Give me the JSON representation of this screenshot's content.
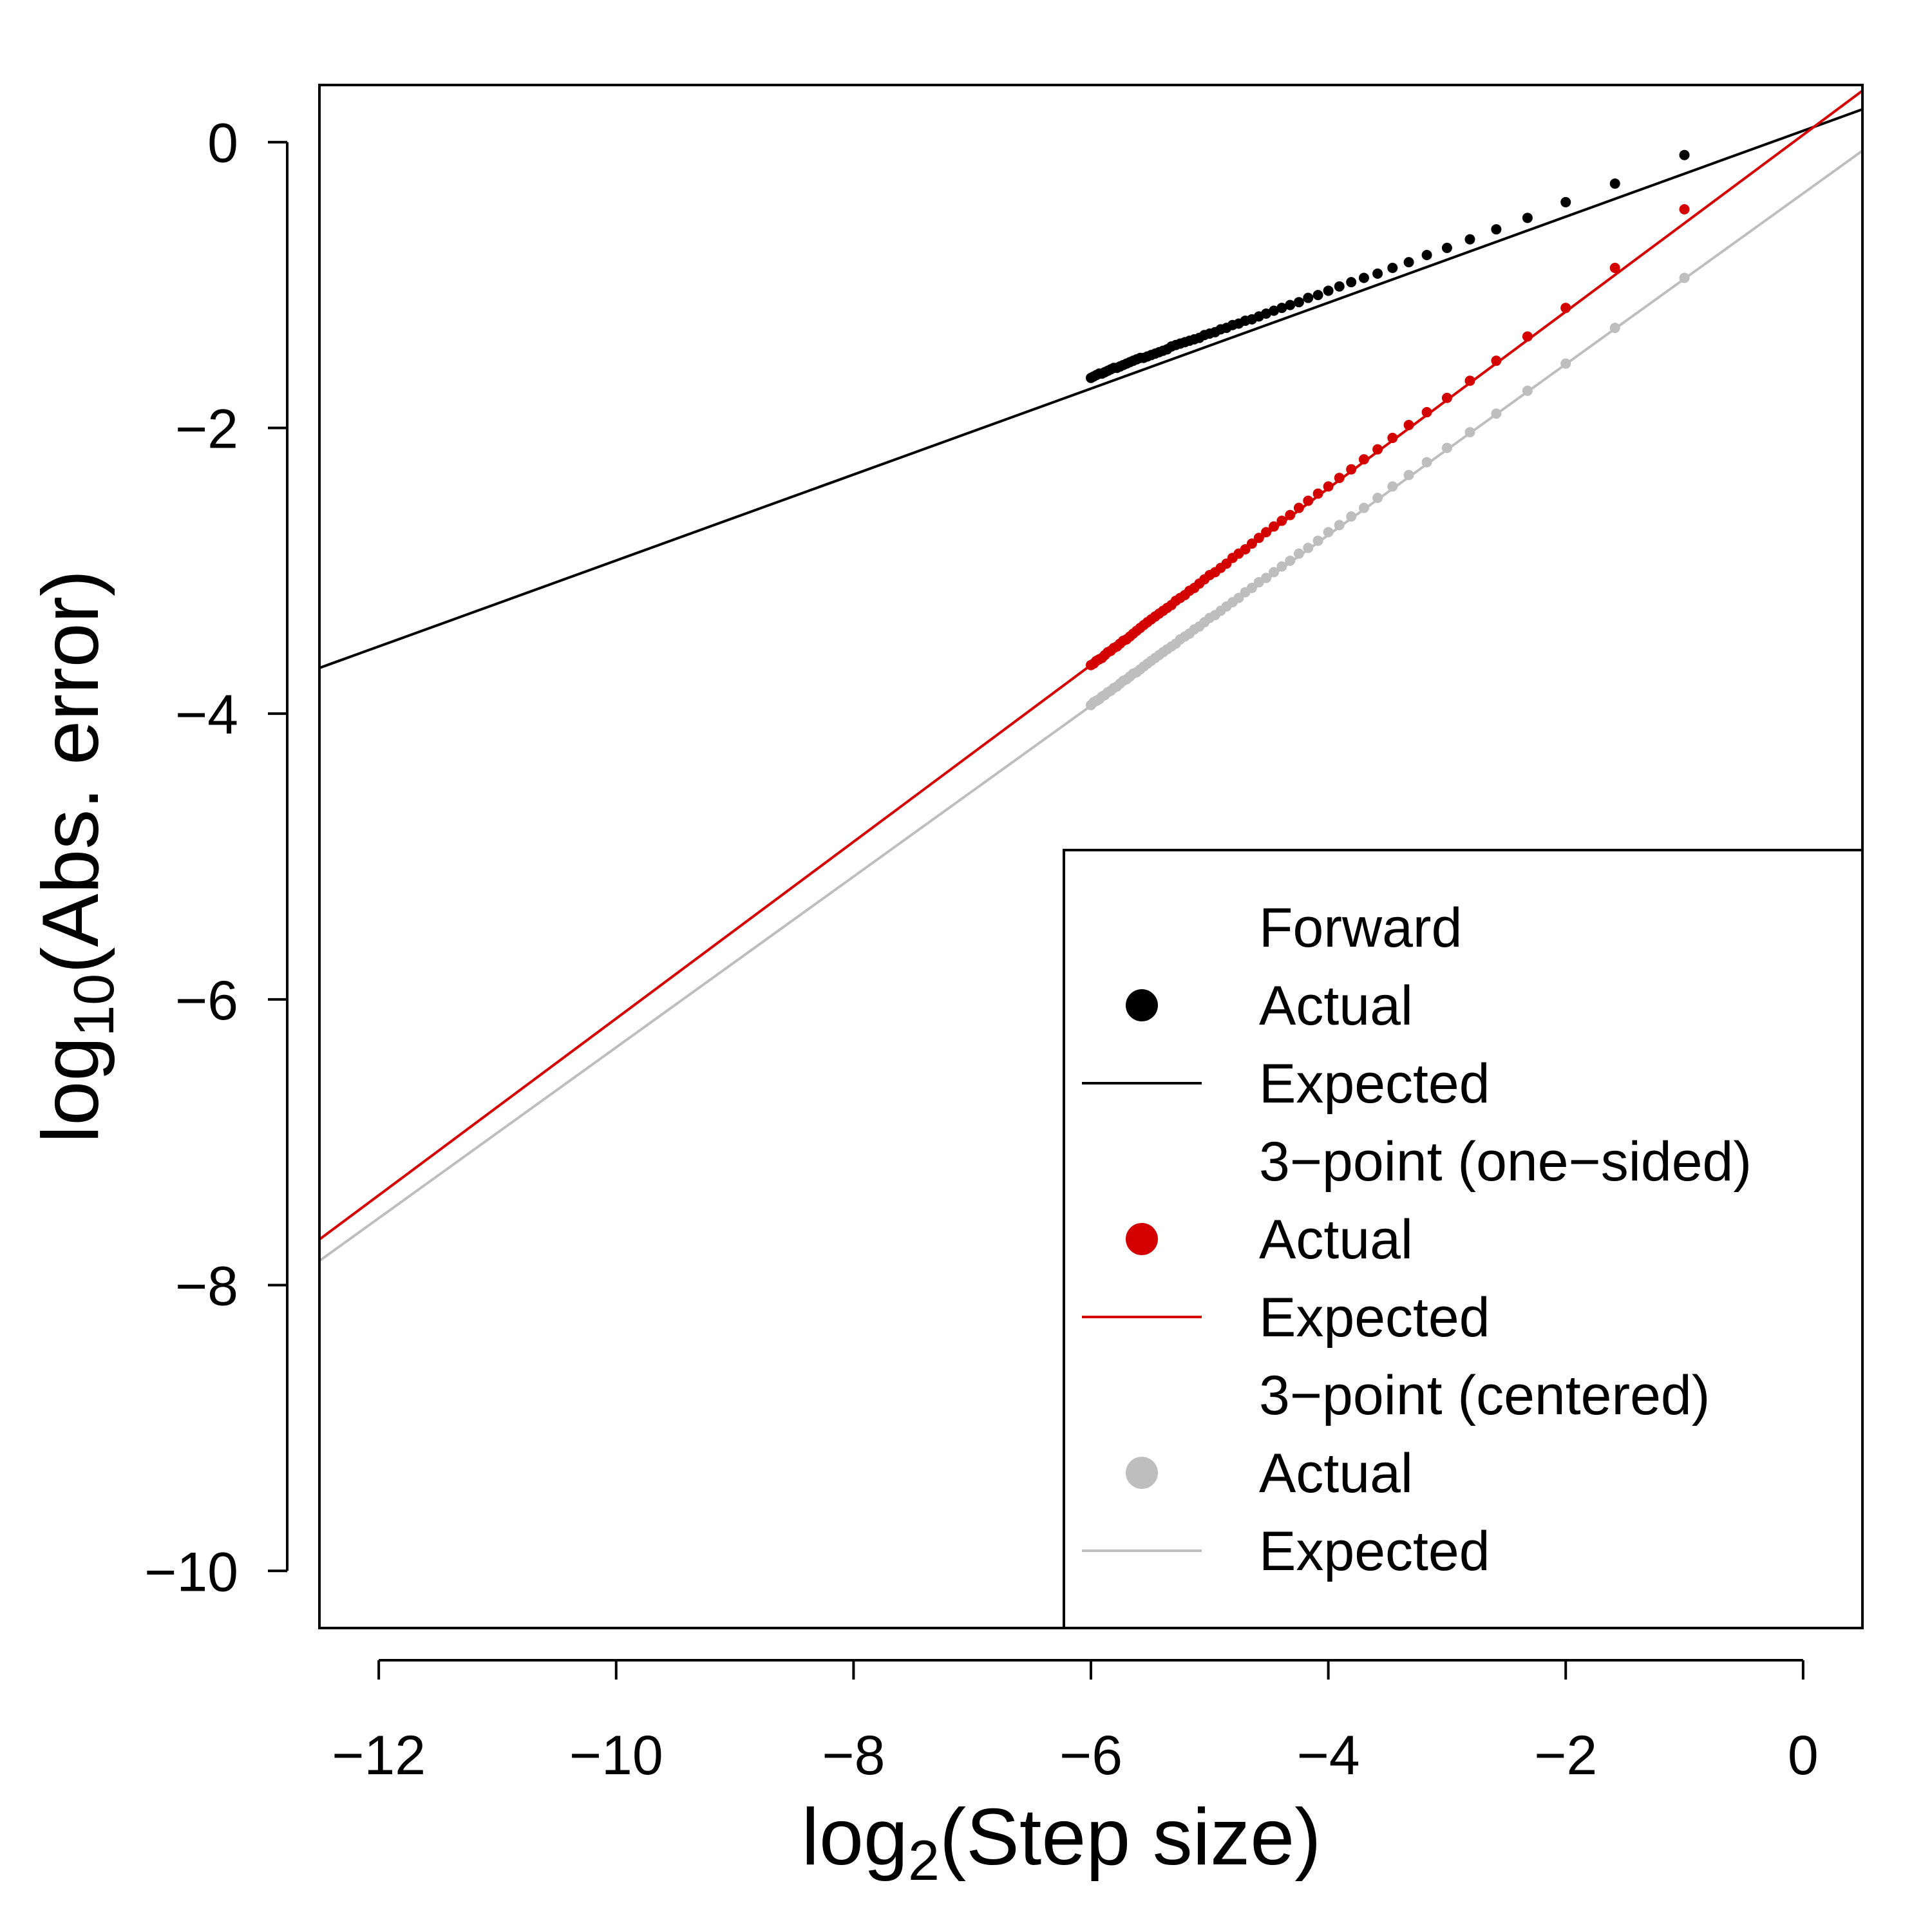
{
  "chart_data": {
    "type": "scatter",
    "xlabel": {
      "pre": "log",
      "sub": "2",
      "post": "(Step size)"
    },
    "ylabel": {
      "pre": "log",
      "sub": "10",
      "post": "(Abs. error)"
    },
    "xlim": [
      -12.5,
      0.5
    ],
    "ylim": [
      -10.4,
      0.4
    ],
    "x_ticks": [
      -12,
      -10,
      -8,
      -6,
      -4,
      -2,
      0
    ],
    "x_tick_labels": [
      "−12",
      "−10",
      "−8",
      "−6",
      "−4",
      "−2",
      "0"
    ],
    "y_ticks": [
      0,
      -2,
      -4,
      -6,
      -8,
      -10
    ],
    "y_tick_labels": [
      "0",
      "−2",
      "−4",
      "−6",
      "−8",
      "−10"
    ],
    "grid": false,
    "legend_position": "bottom-right",
    "groups": [
      {
        "title": "Forward",
        "color": "#000000",
        "points_label": "Actual",
        "line_label": "Expected",
        "expected_line": {
          "x": [
            -12.5,
            0.5
          ],
          "y": [
            -3.68,
            0.23
          ]
        },
        "actual_x": [
          -1.0,
          -1.585,
          -2.0,
          -2.322,
          -2.585,
          -2.807,
          -3.0,
          -3.17,
          -3.322,
          -3.459,
          -3.585,
          -3.7,
          -3.807,
          -3.907,
          -4.0,
          -4.087,
          -4.17,
          -4.248,
          -4.322,
          -4.392,
          -4.459,
          -4.524,
          -4.585,
          -4.644,
          -4.7,
          -4.755,
          -4.807,
          -4.858,
          -4.907,
          -4.954,
          -5.0,
          -5.044,
          -5.087,
          -5.129,
          -5.17,
          -5.209,
          -5.248,
          -5.285,
          -5.322,
          -5.358,
          -5.392,
          -5.426,
          -5.459,
          -5.492,
          -5.524,
          -5.555,
          -5.585,
          -5.615,
          -5.644,
          -5.672,
          -5.7,
          -5.728,
          -5.755,
          -5.781,
          -5.807,
          -5.833,
          -5.858,
          -5.883,
          -5.907,
          -5.931,
          -5.954,
          -5.977,
          -6.0
        ],
        "actual_y": [
          -0.09,
          -0.29,
          -0.42,
          -0.53,
          -0.61,
          -0.68,
          -0.74,
          -0.79,
          -0.84,
          -0.88,
          -0.92,
          -0.95,
          -0.98,
          -1.01,
          -1.04,
          -1.07,
          -1.09,
          -1.12,
          -1.14,
          -1.16,
          -1.18,
          -1.2,
          -1.22,
          -1.24,
          -1.25,
          -1.27,
          -1.28,
          -1.3,
          -1.31,
          -1.33,
          -1.34,
          -1.35,
          -1.37,
          -1.38,
          -1.39,
          -1.4,
          -1.41,
          -1.42,
          -1.43,
          -1.45,
          -1.46,
          -1.47,
          -1.48,
          -1.49,
          -1.5,
          -1.51,
          -1.51,
          -1.52,
          -1.53,
          -1.54,
          -1.55,
          -1.56,
          -1.57,
          -1.58,
          -1.58,
          -1.59,
          -1.6,
          -1.61,
          -1.62,
          -1.62,
          -1.63,
          -1.64,
          -1.65
        ]
      },
      {
        "title": "3−point (one−sided)",
        "color": "#d40000",
        "points_label": "Actual",
        "line_label": "Expected",
        "expected_line": {
          "x": [
            -12.5,
            0.5
          ],
          "y": [
            -7.68,
            0.36
          ]
        },
        "actual_x": [
          -1.0,
          -1.585,
          -2.0,
          -2.322,
          -2.585,
          -2.807,
          -3.0,
          -3.17,
          -3.322,
          -3.459,
          -3.585,
          -3.7,
          -3.807,
          -3.907,
          -4.0,
          -4.087,
          -4.17,
          -4.248,
          -4.322,
          -4.392,
          -4.459,
          -4.524,
          -4.585,
          -4.644,
          -4.7,
          -4.755,
          -4.807,
          -4.858,
          -4.907,
          -4.954,
          -5.0,
          -5.044,
          -5.087,
          -5.129,
          -5.17,
          -5.209,
          -5.248,
          -5.285,
          -5.322,
          -5.358,
          -5.392,
          -5.426,
          -5.459,
          -5.492,
          -5.524,
          -5.555,
          -5.585,
          -5.615,
          -5.644,
          -5.672,
          -5.7,
          -5.728,
          -5.755,
          -5.781,
          -5.807,
          -5.833,
          -5.858,
          -5.883,
          -5.907,
          -5.931,
          -5.954,
          -5.977,
          -6.0
        ],
        "actual_y": [
          -0.47,
          -0.88,
          -1.16,
          -1.36,
          -1.53,
          -1.67,
          -1.79,
          -1.89,
          -1.98,
          -2.07,
          -2.15,
          -2.22,
          -2.29,
          -2.35,
          -2.41,
          -2.46,
          -2.51,
          -2.56,
          -2.61,
          -2.65,
          -2.69,
          -2.73,
          -2.77,
          -2.81,
          -2.85,
          -2.88,
          -2.91,
          -2.95,
          -2.98,
          -3.01,
          -3.03,
          -3.06,
          -3.09,
          -3.12,
          -3.14,
          -3.17,
          -3.19,
          -3.21,
          -3.24,
          -3.26,
          -3.28,
          -3.3,
          -3.32,
          -3.34,
          -3.36,
          -3.38,
          -3.4,
          -3.42,
          -3.44,
          -3.46,
          -3.48,
          -3.49,
          -3.51,
          -3.53,
          -3.54,
          -3.56,
          -3.57,
          -3.59,
          -3.61,
          -3.62,
          -3.63,
          -3.65,
          -3.66
        ]
      },
      {
        "title": "3−point (centered)",
        "color": "#bebebe",
        "points_label": "Actual",
        "line_label": "Expected",
        "expected_line": {
          "x": [
            -12.5,
            0.5
          ],
          "y": [
            -7.83,
            -0.06
          ]
        },
        "actual_x": [
          -1.0,
          -1.585,
          -2.0,
          -2.322,
          -2.585,
          -2.807,
          -3.0,
          -3.17,
          -3.322,
          -3.459,
          -3.585,
          -3.7,
          -3.807,
          -3.907,
          -4.0,
          -4.087,
          -4.17,
          -4.248,
          -4.322,
          -4.392,
          -4.459,
          -4.524,
          -4.585,
          -4.644,
          -4.7,
          -4.755,
          -4.807,
          -4.858,
          -4.907,
          -4.954,
          -5.0,
          -5.044,
          -5.087,
          -5.129,
          -5.17,
          -5.209,
          -5.248,
          -5.285,
          -5.322,
          -5.358,
          -5.392,
          -5.426,
          -5.459,
          -5.492,
          -5.524,
          -5.555,
          -5.585,
          -5.615,
          -5.644,
          -5.672,
          -5.7,
          -5.728,
          -5.755,
          -5.781,
          -5.807,
          -5.833,
          -5.858,
          -5.883,
          -5.907,
          -5.931,
          -5.954,
          -5.977,
          -6.0
        ],
        "actual_y": [
          -0.95,
          -1.3,
          -1.55,
          -1.74,
          -1.9,
          -2.03,
          -2.14,
          -2.24,
          -2.33,
          -2.41,
          -2.49,
          -2.56,
          -2.62,
          -2.68,
          -2.73,
          -2.79,
          -2.84,
          -2.88,
          -2.93,
          -2.97,
          -3.01,
          -3.05,
          -3.08,
          -3.12,
          -3.15,
          -3.19,
          -3.22,
          -3.25,
          -3.28,
          -3.31,
          -3.33,
          -3.36,
          -3.39,
          -3.41,
          -3.44,
          -3.46,
          -3.48,
          -3.51,
          -3.53,
          -3.55,
          -3.57,
          -3.59,
          -3.61,
          -3.63,
          -3.65,
          -3.67,
          -3.69,
          -3.71,
          -3.72,
          -3.74,
          -3.76,
          -3.77,
          -3.79,
          -3.81,
          -3.82,
          -3.84,
          -3.85,
          -3.87,
          -3.88,
          -3.9,
          -3.91,
          -3.92,
          -3.94
        ]
      }
    ]
  }
}
